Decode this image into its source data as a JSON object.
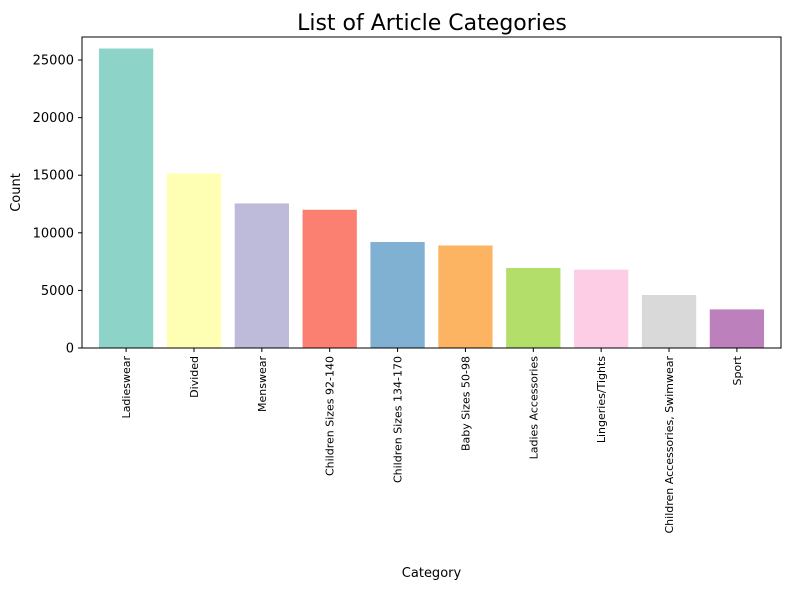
{
  "chart_data": {
    "type": "bar",
    "title": "List of Article Categories",
    "xlabel": "Category",
    "ylabel": "Count",
    "ylim": [
      0,
      27000
    ],
    "yticks": [
      0,
      5000,
      10000,
      15000,
      20000,
      25000
    ],
    "grid": false,
    "categories": [
      "Ladieswear",
      "Divided",
      "Menswear",
      "Children Sizes 92-140",
      "Children Sizes 134-170",
      "Baby Sizes 50-98",
      "Ladies Accessories",
      "Lingeries/Tights",
      "Children Accessories, Swimwear",
      "Sport"
    ],
    "values": [
      26000,
      15150,
      12550,
      12000,
      9200,
      8900,
      6950,
      6800,
      4600,
      3350
    ],
    "colors": [
      "#8dd3c7",
      "#ffffb3",
      "#bebada",
      "#fb8072",
      "#80b1d3",
      "#fdb462",
      "#b3de69",
      "#fccde5",
      "#d9d9d9",
      "#bc80bd"
    ]
  }
}
